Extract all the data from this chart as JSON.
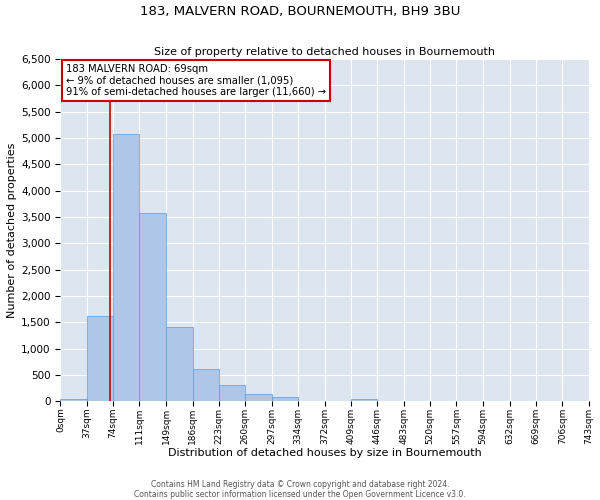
{
  "title": "183, MALVERN ROAD, BOURNEMOUTH, BH9 3BU",
  "subtitle": "Size of property relative to detached houses in Bournemouth",
  "xlabel": "Distribution of detached houses by size in Bournemouth",
  "ylabel": "Number of detached properties",
  "footnote1": "Contains HM Land Registry data © Crown copyright and database right 2024.",
  "footnote2": "Contains public sector information licensed under the Open Government Licence v3.0.",
  "annotation_line1": "183 MALVERN ROAD: 69sqm",
  "annotation_line2": "← 9% of detached houses are smaller (1,095)",
  "annotation_line3": "91% of semi-detached houses are larger (11,660) →",
  "bin_edges": [
    0,
    37,
    74,
    111,
    149,
    186,
    223,
    260,
    297,
    334,
    372,
    409,
    446,
    483,
    520,
    557,
    594,
    632,
    669,
    706,
    743
  ],
  "bin_counts": [
    50,
    1620,
    5070,
    3580,
    1420,
    610,
    300,
    145,
    75,
    0,
    0,
    50,
    0,
    0,
    0,
    0,
    0,
    0,
    0,
    0
  ],
  "bar_color": "#aec6e8",
  "bar_edge_color": "#5b9bd5",
  "vline_x": 69,
  "vline_color": "#cc0000",
  "annotation_box_color": "#cc0000",
  "background_color": "#dde5f0",
  "ylim": [
    0,
    6500
  ],
  "yticks": [
    0,
    500,
    1000,
    1500,
    2000,
    2500,
    3000,
    3500,
    4000,
    4500,
    5000,
    5500,
    6000,
    6500
  ]
}
